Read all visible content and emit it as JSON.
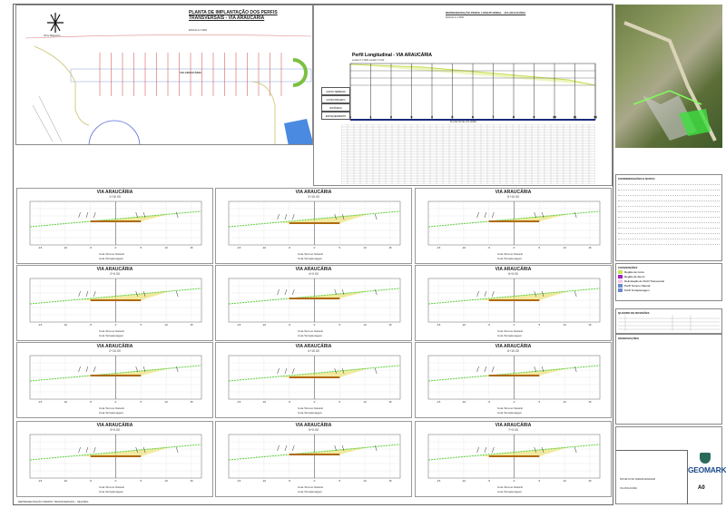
{
  "plan": {
    "title": "PLANTA DE IMPLANTAÇÃO DOS PERFIS TRANSVERSAIS - VIA ARAUCÁRIA",
    "scale": "ESCALA 1:600",
    "street_label": "VIA ARAUCÁRIA",
    "north_caption": "Norte Magnético"
  },
  "profile": {
    "sheet_title": "REPRESENTAÇÃO PERFIL LONGITUDINAL - VIA ARAUCÁRIA",
    "sheet_scale": "ESCALA 1:500",
    "title": "Perfil Longitudinal - VIA ARAUCÁRIA",
    "subtitle": "escala H 1:1000 escala V 1:100",
    "rows": [
      "COTAS TERRENO",
      "COTAS PROJETO",
      "DISTÂNCIA",
      "ESTAQUEAMENTO"
    ],
    "stations": [
      "0",
      "1",
      "2",
      "3",
      "4",
      "5",
      "6",
      "7",
      "8",
      "9",
      "10",
      "11",
      "12"
    ],
    "table_title": "PLANILHA DE VOLUMES"
  },
  "sections": {
    "title": "VIA ARAUCÁRIA",
    "x_ticks": [
      "-15",
      "-10",
      "-5",
      "0",
      "5",
      "10",
      "15"
    ],
    "legend_terrain": "Cota Terreno Natural",
    "legend_grading": "Cota Terraplenagem",
    "items": [
      {
        "station": "1+10.00"
      },
      {
        "station": "3+10.00"
      },
      {
        "station": "5+10.00"
      },
      {
        "station": "2+0.00"
      },
      {
        "station": "4+0.00"
      },
      {
        "station": "6+0.00"
      },
      {
        "station": "2+10.00"
      },
      {
        "station": "4+10.00"
      },
      {
        "station": "6+10.00"
      },
      {
        "station": "3+0.00"
      },
      {
        "station": "5+0.00"
      },
      {
        "station": "7+0.00"
      }
    ],
    "bottom_caption": "REPRESENTAÇÃO PERFIS TRANSVERSAIS - SEÇÕES"
  },
  "right": {
    "notes_title": "CONSIDERAÇÕES E NOTAS",
    "legend_title": "CONVENÇÕES",
    "legend": [
      "Região de Corte",
      "Região de Aterro",
      "Delimitação do Perfil Transversal",
      "Perfil Terreno Natural",
      "Perfil Terraplenagem"
    ],
    "revisions_title": "QUADRO DE REVISÕES",
    "remarks_title": "OBSERVAÇÕES",
    "company": "GEOMARK",
    "sheet_size": "A0",
    "project": "PROJETO DE TERRAPLENAGEM",
    "owner": "VIA ARAUCÁRIA",
    "colors": {
      "cut": "#c8e65a",
      "fill": "#a020c0",
      "ground": "#5ccf3c",
      "platform": "#b06a10",
      "slope": "#e8dc60"
    }
  }
}
